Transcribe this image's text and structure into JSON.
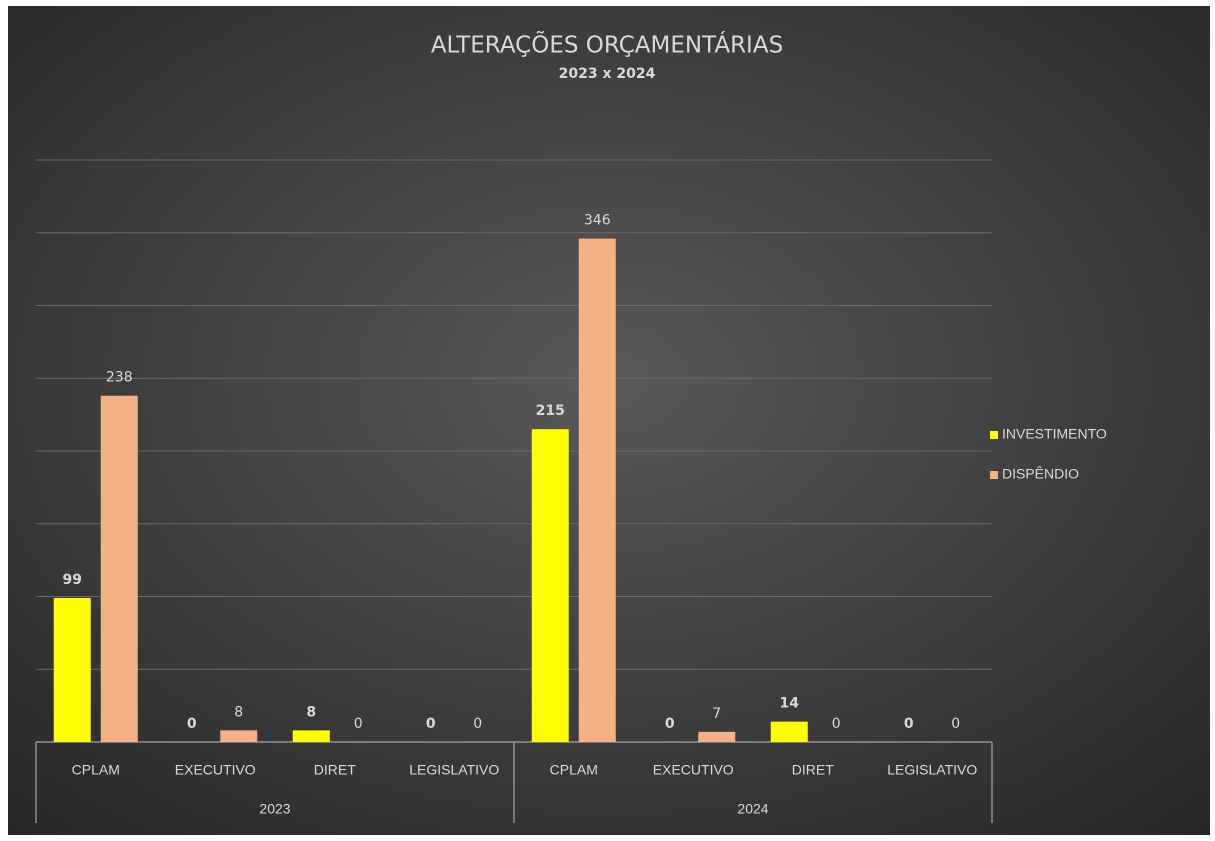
{
  "chart_data": {
    "type": "bar",
    "title": "ALTERAÇÕES ORÇAMENTÁRIAS",
    "subtitle": "2023 x 2024",
    "groups": [
      {
        "name": "2023",
        "categories": [
          "CPLAM",
          "EXECUTIVO",
          "DIRET",
          "LEGISLATIVO"
        ]
      },
      {
        "name": "2024",
        "categories": [
          "CPLAM",
          "EXECUTIVO",
          "DIRET",
          "LEGISLATIVO"
        ]
      }
    ],
    "series": [
      {
        "name": "INVESTIMENTO",
        "color": "#ffff00",
        "values": [
          99,
          0,
          8,
          0,
          215,
          0,
          14,
          0
        ]
      },
      {
        "name": "DISPÊNDIO",
        "color": "#f4b183",
        "values": [
          238,
          8,
          0,
          0,
          346,
          7,
          0,
          0
        ]
      }
    ],
    "ylim": [
      0,
      400
    ],
    "yticks": [
      0,
      50,
      100,
      150,
      200,
      250,
      300,
      350,
      400
    ],
    "grid": true,
    "legend": "right"
  }
}
